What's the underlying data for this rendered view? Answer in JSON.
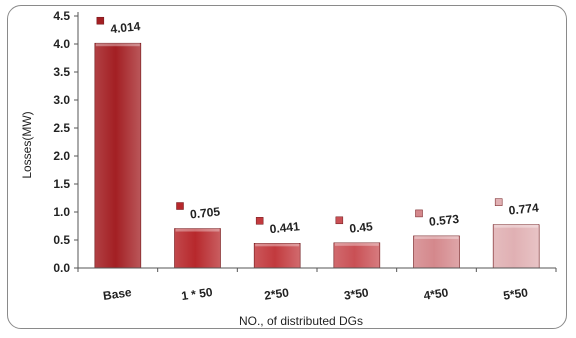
{
  "chart_data": {
    "type": "bar",
    "title": "",
    "xlabel": "NO., of distributed DGs",
    "ylabel": "Losses(MW)",
    "categories": [
      "Base",
      "1 * 50",
      "2*50",
      "3*50",
      "4*50",
      "5*50"
    ],
    "values": [
      4.014,
      0.705,
      0.441,
      0.45,
      0.573,
      0.774
    ],
    "data_labels": [
      "4.014",
      "0.705",
      "0.441",
      "0.45",
      "0.573",
      "0.774"
    ],
    "ylim": [
      0,
      4.5
    ],
    "yticks": [
      "0.0",
      "0.5",
      "1.0",
      "1.5",
      "2.0",
      "2.5",
      "3.0",
      "3.5",
      "4.0",
      "4.5"
    ],
    "legend": "none",
    "grid": false,
    "bar_colors": [
      "#a31f23",
      "#b7282c",
      "#c23a3e",
      "#c95055",
      "#d4888c",
      "#e0b0b3"
    ]
  }
}
